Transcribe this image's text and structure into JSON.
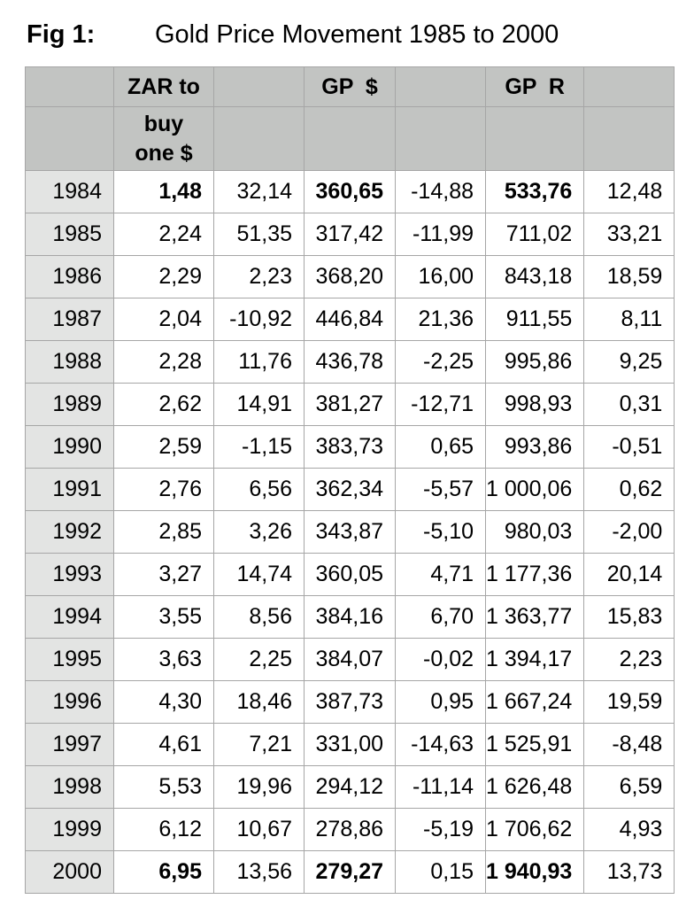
{
  "figure": {
    "label": "Fig 1:",
    "title": "Gold Price Movement 1985 to 2000"
  },
  "table": {
    "column_semantics": [
      "year",
      "zar_to_buy_one_usd",
      "zar_pct_change",
      "gold_price_usd",
      "gp_usd_pct_change",
      "gold_price_rand",
      "gp_rand_pct_change"
    ],
    "header_row1": {
      "year": "",
      "zar": "ZAR to",
      "zar_change": "",
      "gp_usd": "GP  $",
      "gp_usd_change": "",
      "gp_rand": "GP  R",
      "gp_rand_change": ""
    },
    "header_row2": {
      "zar": "buy\none $"
    },
    "rows": [
      {
        "cells": [
          "1984",
          "1,48",
          "32,14",
          "360,65",
          "-14,88",
          "533,76",
          "12,48"
        ],
        "bold_cells": [
          1,
          3,
          5
        ]
      },
      {
        "cells": [
          "1985",
          "2,24",
          "51,35",
          "317,42",
          "-11,99",
          "711,02",
          "33,21"
        ],
        "bold_cells": []
      },
      {
        "cells": [
          "1986",
          "2,29",
          "2,23",
          "368,20",
          "16,00",
          "843,18",
          "18,59"
        ],
        "bold_cells": []
      },
      {
        "cells": [
          "1987",
          "2,04",
          "-10,92",
          "446,84",
          "21,36",
          "911,55",
          "8,11"
        ],
        "bold_cells": []
      },
      {
        "cells": [
          "1988",
          "2,28",
          "11,76",
          "436,78",
          "-2,25",
          "995,86",
          "9,25"
        ],
        "bold_cells": []
      },
      {
        "cells": [
          "1989",
          "2,62",
          "14,91",
          "381,27",
          "-12,71",
          "998,93",
          "0,31"
        ],
        "bold_cells": []
      },
      {
        "cells": [
          "1990",
          "2,59",
          "-1,15",
          "383,73",
          "0,65",
          "993,86",
          "-0,51"
        ],
        "bold_cells": []
      },
      {
        "cells": [
          "1991",
          "2,76",
          "6,56",
          "362,34",
          "-5,57",
          "1 000,06",
          "0,62"
        ],
        "bold_cells": []
      },
      {
        "cells": [
          "1992",
          "2,85",
          "3,26",
          "343,87",
          "-5,10",
          "980,03",
          "-2,00"
        ],
        "bold_cells": []
      },
      {
        "cells": [
          "1993",
          "3,27",
          "14,74",
          "360,05",
          "4,71",
          "1 177,36",
          "20,14"
        ],
        "bold_cells": []
      },
      {
        "cells": [
          "1994",
          "3,55",
          "8,56",
          "384,16",
          "6,70",
          "1 363,77",
          "15,83"
        ],
        "bold_cells": []
      },
      {
        "cells": [
          "1995",
          "3,63",
          "2,25",
          "384,07",
          "-0,02",
          "1 394,17",
          "2,23"
        ],
        "bold_cells": []
      },
      {
        "cells": [
          "1996",
          "4,30",
          "18,46",
          "387,73",
          "0,95",
          "1 667,24",
          "19,59"
        ],
        "bold_cells": []
      },
      {
        "cells": [
          "1997",
          "4,61",
          "7,21",
          "331,00",
          "-14,63",
          "1 525,91",
          "-8,48"
        ],
        "bold_cells": []
      },
      {
        "cells": [
          "1998",
          "5,53",
          "19,96",
          "294,12",
          "-11,14",
          "1 626,48",
          "6,59"
        ],
        "bold_cells": []
      },
      {
        "cells": [
          "1999",
          "6,12",
          "10,67",
          "278,86",
          "-5,19",
          "1 706,62",
          "4,93"
        ],
        "bold_cells": []
      },
      {
        "cells": [
          "2000",
          "6,95",
          "13,56",
          "279,27",
          "0,15",
          "1 940,93",
          "13,73"
        ],
        "bold_cells": [
          1,
          3,
          5
        ]
      }
    ]
  },
  "colors": {
    "header_bg": "#c2c4c2",
    "year_col_bg": "#e3e4e3",
    "cell_bg": "#ffffff",
    "border": "#a6a6a6",
    "text": "#000000"
  }
}
